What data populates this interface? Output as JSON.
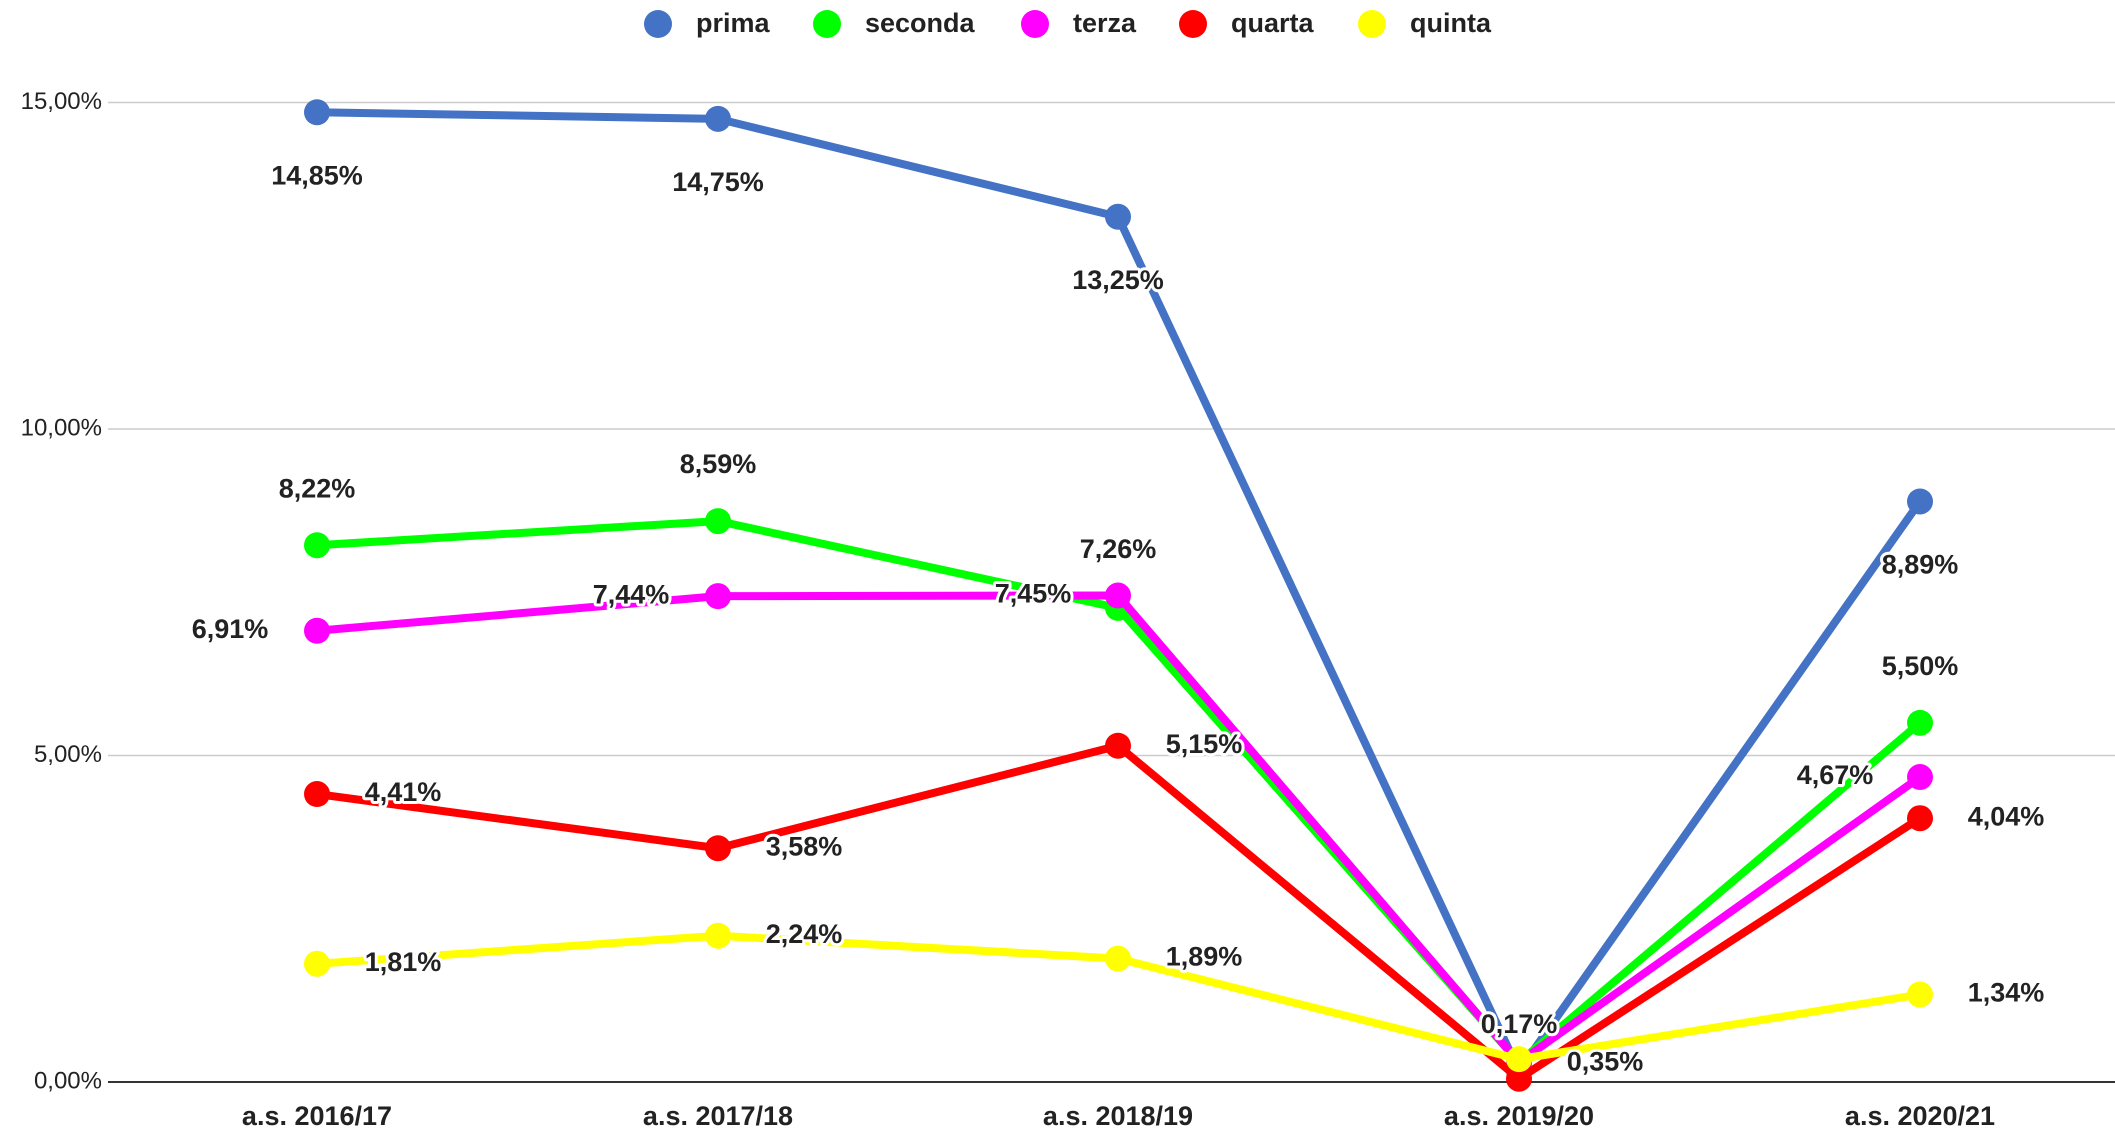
{
  "chart_data": {
    "type": "line",
    "categories": [
      "a.s. 2016/17",
      "a.s. 2017/18",
      "a.s. 2018/19",
      "a.s. 2019/20",
      "a.s. 2020/21"
    ],
    "series": [
      {
        "name": "prima",
        "color": "#4472c4",
        "values": [
          14.85,
          14.75,
          13.25,
          0.17,
          8.89
        ],
        "value_labels": [
          "14,85%",
          "14,75%",
          "13,25%",
          "0,17%",
          "8,89%"
        ]
      },
      {
        "name": "seconda",
        "color": "#00ff00",
        "values": [
          8.22,
          8.59,
          7.26,
          0.3,
          5.5
        ],
        "value_labels": [
          "8,22%",
          "8,59%",
          "7,26%",
          null,
          "5,50%"
        ]
      },
      {
        "name": "terza",
        "color": "#ff00ff",
        "values": [
          6.91,
          7.44,
          7.45,
          0.3,
          4.67
        ],
        "value_labels": [
          "6,91%",
          "7,44%",
          "7,45%",
          null,
          "4,67%"
        ]
      },
      {
        "name": "quarta",
        "color": "#ff0000",
        "values": [
          4.41,
          3.58,
          5.15,
          0.05,
          4.04
        ],
        "value_labels": [
          "4,41%",
          "3,58%",
          "5,15%",
          null,
          "4,04%"
        ]
      },
      {
        "name": "quinta",
        "color": "#ffff00",
        "values": [
          1.81,
          2.24,
          1.89,
          0.35,
          1.34
        ],
        "value_labels": [
          "1,81%",
          "2,24%",
          "1,89%",
          "0,35%",
          "1,34%"
        ]
      }
    ],
    "ylim": [
      0,
      15
    ],
    "yticks": [
      {
        "value": 0,
        "label": "0,00%"
      },
      {
        "value": 5,
        "label": "5,00%"
      },
      {
        "value": 10,
        "label": "10,00%"
      },
      {
        "value": 15,
        "label": "15,00%"
      }
    ],
    "grid": true,
    "legend": "top"
  }
}
